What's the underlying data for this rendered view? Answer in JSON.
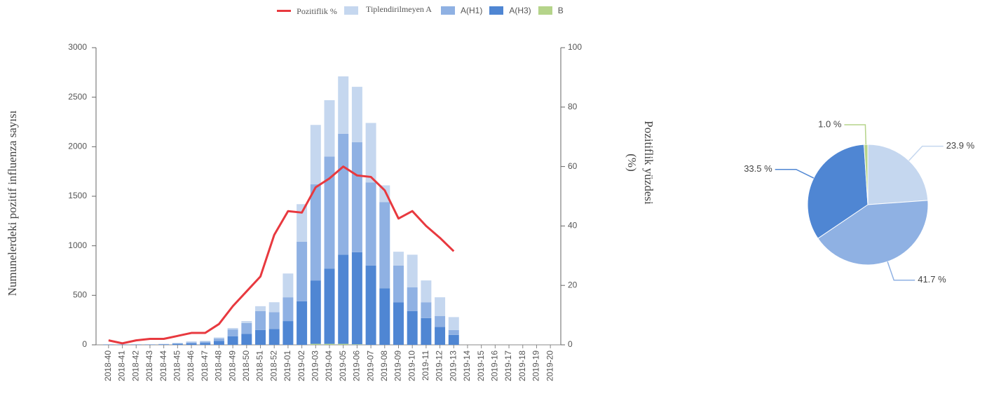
{
  "chart_data": [
    {
      "type": "bar",
      "stacked": true,
      "grid": false,
      "y_label": "Numunelerdeki pozitif influenza sayısı",
      "y2_label": "Pozitiflik yüzdesi (%)",
      "categories": [
        "2018-40",
        "2018-41",
        "2018-42",
        "2018-43",
        "2018-44",
        "2018-45",
        "2018-46",
        "2018-47",
        "2018-48",
        "2018-49",
        "2018-50",
        "2018-51",
        "2018-52",
        "2019-01",
        "2019-02",
        "2019-03",
        "2019-04",
        "2019-05",
        "2019-06",
        "2019-07",
        "2019-08",
        "2019-09",
        "2019-10",
        "2019-11",
        "2019-12",
        "2019-13",
        "2019-14",
        "2019-15",
        "2019-16",
        "2019-17",
        "2019-18",
        "2019-19",
        "2019-20"
      ],
      "ylim": [
        0,
        3000
      ],
      "yticks": [
        0,
        500,
        1000,
        1500,
        2000,
        2500,
        3000
      ],
      "y2lim": [
        0,
        100
      ],
      "y2ticks": [
        0,
        20,
        40,
        60,
        80,
        100
      ],
      "series": [
        {
          "name": "Pozitiflik %",
          "type": "line",
          "axis": "y2",
          "color": "#e8393f",
          "values": [
            1.5,
            0.5,
            1.5,
            2,
            2,
            3,
            4,
            4,
            7,
            13,
            18,
            23,
            37,
            45,
            44.5,
            53,
            56,
            60,
            57,
            56.5,
            52,
            42.5,
            45,
            40,
            36,
            31.5,
            null,
            null,
            null,
            null,
            null,
            null,
            null
          ]
        },
        {
          "name": "Tiplendirilmeyen A",
          "color": "#c5d7ef",
          "values": [
            1,
            1,
            1,
            1,
            2,
            4,
            10,
            8,
            10,
            15,
            20,
            50,
            100,
            240,
            380,
            600,
            570,
            580,
            560,
            600,
            170,
            140,
            330,
            220,
            190,
            130,
            null,
            null,
            null,
            null,
            null,
            null,
            null
          ]
        },
        {
          "name": "A(H1)",
          "color": "#8fb1e3",
          "values": [
            1,
            1,
            1,
            1,
            3,
            6,
            10,
            12,
            25,
            70,
            110,
            190,
            170,
            240,
            600,
            970,
            1130,
            1220,
            1110,
            840,
            870,
            370,
            240,
            160,
            110,
            50,
            null,
            null,
            null,
            null,
            null,
            null,
            null
          ]
        },
        {
          "name": "A(H3)",
          "color": "#4f86d3",
          "values": [
            3,
            3,
            3,
            3,
            5,
            10,
            15,
            20,
            40,
            85,
            110,
            150,
            160,
            240,
            440,
            640,
            760,
            900,
            930,
            800,
            570,
            430,
            340,
            270,
            180,
            100,
            null,
            null,
            null,
            null,
            null,
            null,
            null
          ]
        },
        {
          "name": "B",
          "color": "#b5d48a",
          "values": [
            0,
            0,
            0,
            0,
            0,
            0,
            0,
            0,
            0,
            0,
            0,
            0,
            0,
            0,
            0,
            10,
            10,
            10,
            5,
            0,
            0,
            0,
            0,
            0,
            0,
            0,
            null,
            null,
            null,
            null,
            null,
            null,
            null
          ]
        }
      ]
    },
    {
      "type": "pie",
      "values": [
        23.9,
        41.7,
        33.5,
        1.0
      ],
      "value_labels": [
        "23.9 %",
        "41.7 %",
        "33.5 %",
        "1.0 %"
      ],
      "colors": [
        "#c5d7ef",
        "#8fb1e3",
        "#4f86d3",
        "#b5d48a"
      ]
    }
  ]
}
